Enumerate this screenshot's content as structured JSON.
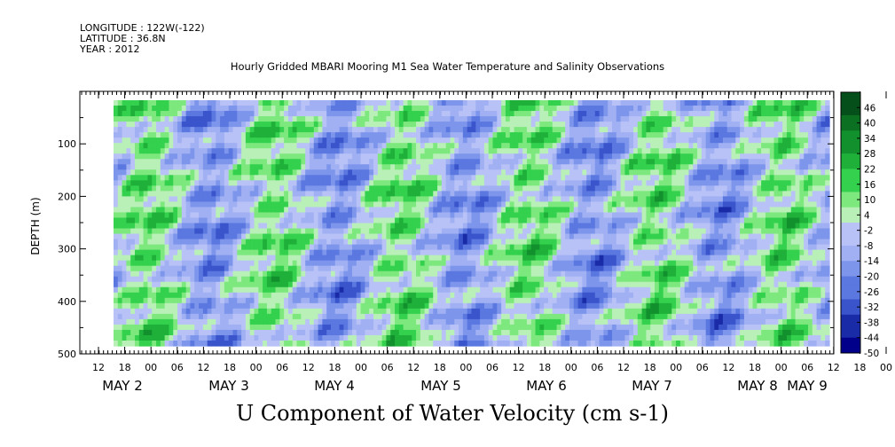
{
  "header": {
    "longitude": "LONGITUDE : 122W(-122)",
    "latitude": "LATITUDE : 36.8N",
    "year": "YEAR : 2012"
  },
  "chart_data": {
    "type": "heatmap",
    "title": "Hourly Gridded MBARI Mooring M1 Sea Water Temperature and Salinity Observations",
    "bottom_title": "U Component of Water Velocity (cm s-1)",
    "ylabel": "DEPTH (m)",
    "ylim": [
      500,
      0
    ],
    "y_reversed": true,
    "y_ticks": [
      100,
      200,
      300,
      400,
      500
    ],
    "x_hour_labels": [
      "12",
      "18",
      "00",
      "06",
      "12",
      "18",
      "00",
      "06",
      "12",
      "18",
      "00",
      "06",
      "12",
      "18",
      "00",
      "06",
      "12",
      "18",
      "00",
      "06",
      "12",
      "18",
      "00",
      "06",
      "12",
      "18",
      "00",
      "06",
      "12",
      "18",
      "00",
      "06"
    ],
    "x_day_labels": [
      "MAY 2",
      "MAY 3",
      "MAY 4",
      "MAY 5",
      "MAY 6",
      "MAY 7",
      "MAY 8",
      "MAY 9"
    ],
    "colorbar": {
      "labels": [
        46,
        40,
        34,
        28,
        22,
        16,
        10,
        4,
        -2,
        -8,
        -14,
        -20,
        -26,
        -32,
        -38,
        -44,
        -50
      ],
      "min": -50,
      "max": 52,
      "step": 3,
      "negative_colors": [
        "#00008a",
        "#1a2ba8",
        "#3a55cc",
        "#5b77e0",
        "#7d96ec",
        "#a0b0f2",
        "#b8c2f7"
      ],
      "positive_colors": [
        "#b8f0b8",
        "#7de87d",
        "#33d14d",
        "#1fb03a",
        "#12902d",
        "#0b7022",
        "#05501a"
      ]
    }
  }
}
